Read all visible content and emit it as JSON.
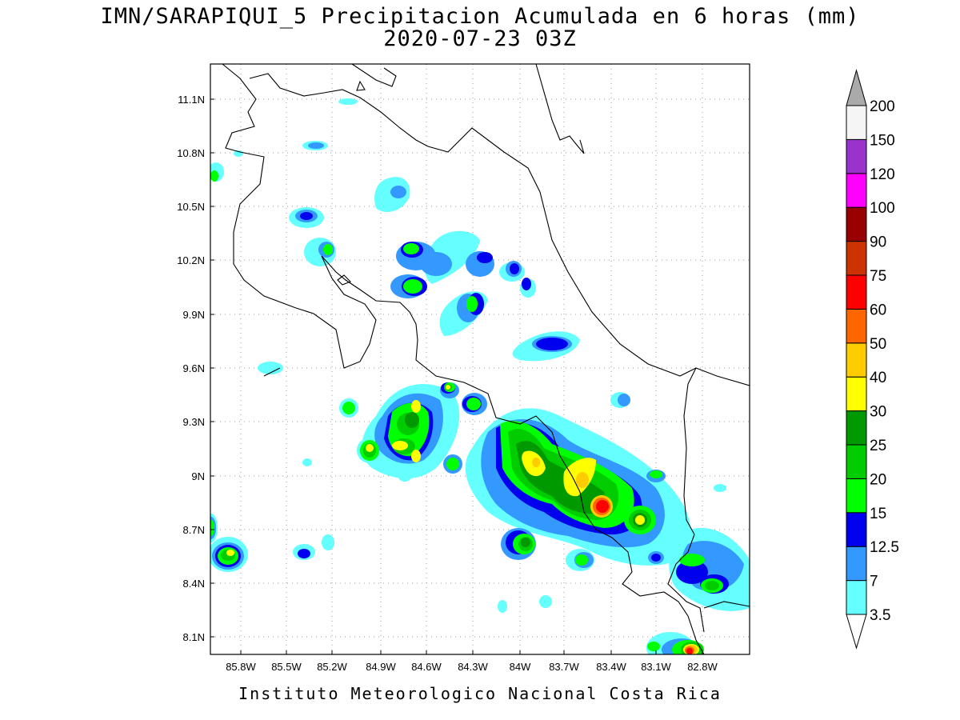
{
  "title": "IMN/SARAPIQUI_5 Precipitacion Acumulada en 6 horas (mm)",
  "subtitle": "2020-07-23 03Z",
  "footer": "Instituto Meteorologico Nacional Costa Rica",
  "map": {
    "lon_range": [
      -86.0,
      -82.6
    ],
    "lat_range": [
      8.0,
      11.3
    ],
    "lat_ticks": [
      "11.1N",
      "10.8N",
      "10.5N",
      "10.2N",
      "9.9N",
      "9.6N",
      "9.3N",
      "9N",
      "8.7N",
      "8.4N",
      "8.1N"
    ],
    "lon_ticks": [
      "85.8W",
      "85.5W",
      "85.2W",
      "84.9W",
      "84.6W",
      "84.3W",
      "84W",
      "83.7W",
      "83.4W",
      "83.1W",
      "82.8W"
    ],
    "grid": "dotted"
  },
  "colorbar": {
    "labels": [
      "3.5",
      "7",
      "12.5",
      "15",
      "20",
      "25",
      "30",
      "40",
      "50",
      "60",
      "75",
      "90",
      "100",
      "120",
      "150",
      "200"
    ],
    "colors": [
      "#66ffff",
      "#3399ff",
      "#0000ee",
      "#00ff00",
      "#00cc00",
      "#009900",
      "#ffff00",
      "#ffcc00",
      "#ff6600",
      "#ff0000",
      "#cc3300",
      "#990000",
      "#ff00ff",
      "#9933cc",
      "#f5f5f5",
      "#aaaaaa"
    ],
    "under_color": "#ffffff",
    "over_color": "#aaaaaa"
  }
}
